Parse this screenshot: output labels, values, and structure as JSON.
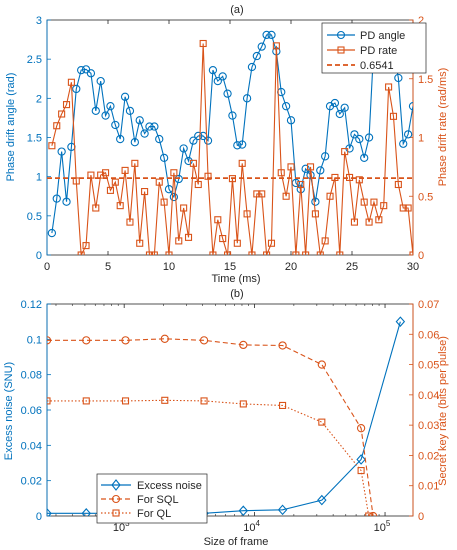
{
  "colors": {
    "blue": "#0072BD",
    "orange": "#D95319",
    "axis": "#262626",
    "grid": "#ffffff"
  },
  "chart_data": [
    {
      "panel_label": "(a)",
      "type": "line",
      "xlabel": "Time (ms)",
      "ylabel_left": "Phase drift angle (rad)",
      "ylabel_right": "Phase drift rate (rad/ms)",
      "xlim": [
        0,
        30
      ],
      "ylim_left": [
        0,
        3
      ],
      "ylim_right": [
        0,
        2
      ],
      "xticks": [
        0,
        5,
        10,
        15,
        20,
        25,
        30
      ],
      "yticks_left": [
        "0",
        "0.5",
        "1",
        "1.5",
        "2",
        "2.5",
        "3"
      ],
      "yticks_right": [
        "0",
        "0.5",
        "1",
        "1.5",
        "2"
      ],
      "legend_position": "top-right",
      "series": [
        {
          "name": "PD angle",
          "axis": "left",
          "marker": "circle",
          "line_style": "solid",
          "color": "#0072BD",
          "x": [
            0.4,
            0.8,
            1.2,
            1.6,
            2.0,
            2.4,
            2.8,
            3.2,
            3.6,
            4.0,
            4.4,
            4.8,
            5.2,
            5.6,
            6.0,
            6.4,
            6.8,
            7.2,
            7.6,
            8.0,
            8.4,
            8.8,
            9.2,
            9.6,
            10.0,
            10.4,
            10.8,
            11.2,
            11.6,
            12.0,
            12.4,
            12.8,
            13.2,
            13.6,
            14.0,
            14.4,
            14.8,
            15.2,
            15.6,
            16.0,
            16.4,
            16.8,
            17.2,
            17.6,
            18.0,
            18.4,
            18.8,
            19.2,
            19.6,
            20.0,
            20.4,
            20.8,
            21.2,
            21.6,
            22.0,
            22.4,
            22.8,
            23.2,
            23.6,
            24.0,
            24.4,
            24.8,
            25.2,
            25.6,
            26.0,
            26.4,
            26.8,
            27.2,
            27.6,
            28.0,
            28.4,
            28.8,
            29.2,
            29.6,
            30.0
          ],
          "y": [
            0.28,
            0.72,
            1.32,
            0.68,
            1.38,
            2.12,
            2.36,
            2.37,
            2.32,
            1.84,
            2.22,
            1.78,
            1.9,
            1.66,
            1.48,
            2.02,
            1.84,
            1.44,
            1.72,
            1.55,
            1.64,
            1.64,
            1.48,
            1.24,
            0.84,
            0.74,
            0.97,
            1.36,
            1.2,
            1.46,
            1.52,
            1.52,
            1.46,
            2.36,
            2.22,
            2.28,
            2.06,
            1.78,
            1.4,
            1.41,
            2.0,
            2.4,
            2.54,
            2.66,
            2.81,
            2.81,
            2.6,
            2.08,
            1.9,
            1.72,
            0.92,
            0.84,
            1.1,
            1.02,
            0.68,
            1.08,
            1.26,
            1.9,
            1.94,
            1.8,
            1.88,
            1.36,
            1.54,
            1.48,
            1.24,
            1.5,
            2.7,
            2.86,
            2.72,
            2.8,
            2.62,
            2.26,
            1.42,
            1.54,
            1.9
          ]
        },
        {
          "name": "PD rate",
          "axis": "right",
          "marker": "square",
          "line_style": "solid",
          "color": "#D95319",
          "x": [
            0.4,
            0.8,
            1.2,
            1.6,
            2.0,
            2.4,
            2.8,
            3.2,
            3.6,
            4.0,
            4.4,
            4.8,
            5.2,
            5.6,
            6.0,
            6.4,
            6.8,
            7.2,
            7.6,
            8.0,
            8.4,
            8.8,
            9.2,
            9.6,
            10.0,
            10.4,
            10.8,
            11.2,
            11.6,
            12.0,
            12.4,
            12.8,
            13.2,
            13.6,
            14.0,
            14.4,
            14.8,
            15.2,
            15.6,
            16.0,
            16.4,
            16.8,
            17.2,
            17.6,
            18.0,
            18.4,
            18.8,
            19.2,
            19.6,
            20.0,
            20.4,
            20.8,
            21.2,
            21.6,
            22.0,
            22.4,
            22.8,
            23.2,
            23.6,
            24.0,
            24.4,
            24.8,
            25.2,
            25.6,
            26.0,
            26.4,
            26.8,
            27.2,
            27.6,
            28.0,
            28.4,
            28.8,
            29.2,
            29.6,
            30.0
          ],
          "y": [
            0.93,
            1.1,
            1.2,
            1.28,
            1.47,
            0.63,
            0.0,
            0.08,
            0.68,
            0.4,
            0.68,
            0.7,
            0.55,
            0.62,
            0.42,
            0.72,
            0.28,
            0.78,
            0.1,
            0.54,
            0.0,
            0.0,
            0.62,
            0.45,
            0.0,
            0.7,
            0.12,
            0.4,
            0.15,
            0.78,
            0.6,
            1.8,
            0.67,
            0.0,
            0.3,
            0.14,
            0.0,
            0.65,
            0.1,
            0.78,
            0.35,
            0.0,
            0.52,
            0.52,
            0.0,
            0.1,
            1.78,
            0.7,
            0.5,
            0.75,
            0.0,
            0.6,
            0.0,
            0.75,
            0.35,
            0.0,
            0.12,
            0.5,
            0.66,
            0.0,
            0.88,
            0.66,
            0.28,
            0.64,
            0.45,
            0.28,
            0.45,
            0.3,
            0.42,
            1.43,
            1.18,
            0.6,
            0.4,
            0.4,
            0.0
          ]
        },
        {
          "name": "0.6541",
          "axis": "right",
          "marker": "none",
          "line_style": "dashed",
          "color": "#D95319",
          "x": [
            0,
            30
          ],
          "y": [
            0.6541,
            0.6541
          ]
        }
      ]
    },
    {
      "panel_label": "(b)",
      "type": "line",
      "xlabel": "Size of frame",
      "ylabel_left": "Excess noise (SNU)",
      "ylabel_right": "Secret key rate (bits per pulse)",
      "x_scale": "log",
      "xlim": [
        256,
        163840
      ],
      "ylim_left": [
        0,
        0.12
      ],
      "ylim_right": [
        0,
        0.07
      ],
      "xticks": [
        {
          "value": 1000,
          "label": "10",
          "exp": "3"
        },
        {
          "value": 10000,
          "label": "10",
          "exp": "4"
        },
        {
          "value": 100000,
          "label": "10",
          "exp": "5"
        }
      ],
      "yticks_left": [
        "0",
        "0.02",
        "0.04",
        "0.06",
        "0.08",
        "0.1",
        "0.12"
      ],
      "yticks_right": [
        "0",
        "0.01",
        "0.02",
        "0.03",
        "0.04",
        "0.05",
        "0.06",
        "0.07"
      ],
      "legend_position": "bottom-left",
      "series": [
        {
          "name": "Excess noise",
          "axis": "left",
          "marker": "diamond",
          "line_style": "solid",
          "color": "#0072BD",
          "x": [
            256,
            512,
            1024,
            2048,
            4096,
            8192,
            16384,
            32768,
            65536,
            131072
          ],
          "y": [
            0.0015,
            0.0015,
            0.0015,
            0.0015,
            0.0015,
            0.003,
            0.0035,
            0.009,
            0.032,
            0.11
          ]
        },
        {
          "name": "For SQL",
          "axis": "right",
          "marker": "circle",
          "line_style": "dashed",
          "color": "#D95319",
          "x": [
            256,
            512,
            1024,
            2048,
            4096,
            8192,
            16384,
            32768,
            65536,
            81000
          ],
          "y": [
            0.058,
            0.058,
            0.058,
            0.0585,
            0.058,
            0.0565,
            0.0563,
            0.05,
            0.029,
            0.0
          ]
        },
        {
          "name": "For QL",
          "axis": "right",
          "marker": "square",
          "line_style": "dotted",
          "color": "#D95319",
          "x": [
            256,
            512,
            1024,
            2048,
            4096,
            8192,
            16384,
            32768,
            65536,
            75000
          ],
          "y": [
            0.038,
            0.038,
            0.038,
            0.0382,
            0.038,
            0.037,
            0.0365,
            0.031,
            0.015,
            0.0
          ]
        }
      ]
    }
  ]
}
